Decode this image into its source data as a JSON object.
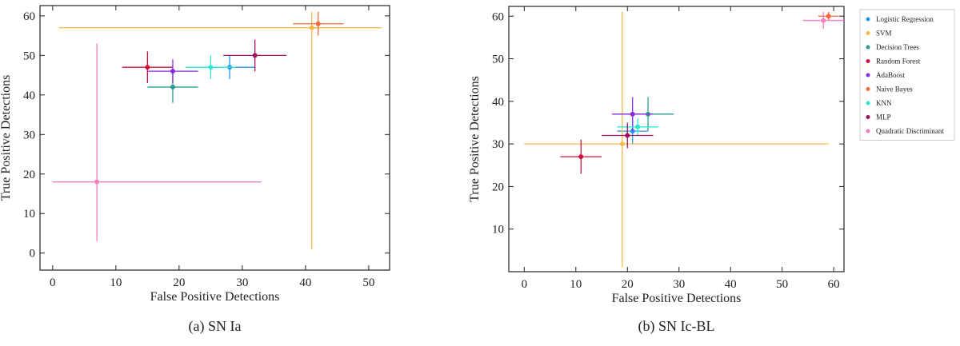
{
  "chart_data": [
    {
      "type": "scatter",
      "caption": "(a) SN Ia",
      "x_label": "False Positive Detections",
      "y_label": "True Positive Detections",
      "xlim": [
        -2,
        53.3
      ],
      "ylim": [
        -4.3,
        62.6
      ],
      "xticks": [
        0,
        10,
        20,
        30,
        40,
        50
      ],
      "yticks": [
        0,
        10,
        20,
        30,
        40,
        50,
        60
      ],
      "series": [
        {
          "color": "#2196f3",
          "x": [
            28
          ],
          "values": [
            47
          ],
          "x_err": [
            [
              4,
              4
            ]
          ],
          "y_err": [
            [
              3,
              3
            ]
          ]
        },
        {
          "color": "#f8b84a",
          "x": [
            41
          ],
          "values": [
            57
          ],
          "x_err": [
            [
              40,
              11
            ]
          ],
          "y_err": [
            [
              56,
              4
            ]
          ]
        },
        {
          "color": "#2a9d8f",
          "x": [
            19
          ],
          "values": [
            42
          ],
          "x_err": [
            [
              4,
              4
            ]
          ],
          "y_err": [
            [
              4,
              4
            ]
          ]
        },
        {
          "color": "#d0103a",
          "x": [
            15
          ],
          "values": [
            47
          ],
          "x_err": [
            [
              4,
              4
            ]
          ],
          "y_err": [
            [
              4,
              4
            ]
          ]
        },
        {
          "color": "#8a2be2",
          "x": [
            19
          ],
          "values": [
            46
          ],
          "x_err": [
            [
              4,
              4
            ]
          ],
          "y_err": [
            [
              3,
              3
            ]
          ]
        },
        {
          "color": "#f26b3a",
          "x": [
            42
          ],
          "values": [
            58
          ],
          "x_err": [
            [
              4,
              4
            ]
          ],
          "y_err": [
            [
              3,
              3
            ]
          ]
        },
        {
          "color": "#2ee8d0",
          "x": [
            25
          ],
          "values": [
            47
          ],
          "x_err": [
            [
              4,
              4
            ]
          ],
          "y_err": [
            [
              3,
              3
            ]
          ]
        },
        {
          "color": "#a01060",
          "x": [
            32
          ],
          "values": [
            50
          ],
          "x_err": [
            [
              5,
              5
            ]
          ],
          "y_err": [
            [
              4,
              4
            ]
          ]
        },
        {
          "color": "#f77fbf",
          "x": [
            7
          ],
          "values": [
            18
          ],
          "x_err": [
            [
              7,
              26
            ]
          ],
          "y_err": [
            [
              15,
              35
            ]
          ]
        }
      ]
    },
    {
      "type": "scatter",
      "caption": "(b) SN Ic-BL",
      "x_label": "False Positive Detections",
      "y_label": "True Positive Detections",
      "xlim": [
        -3,
        62
      ],
      "ylim": [
        0,
        62.3
      ],
      "xticks": [
        0,
        10,
        20,
        30,
        40,
        50,
        60
      ],
      "yticks": [
        10,
        20,
        30,
        40,
        50,
        60
      ],
      "legend": "outside upper right",
      "series": [
        {
          "name": "Logistic Regression",
          "color": "#2196f3",
          "x": [
            21
          ],
          "values": [
            33
          ],
          "x_err": [
            [
              3,
              3
            ]
          ],
          "y_err": [
            [
              3,
              3
            ]
          ]
        },
        {
          "name": "SVM",
          "color": "#f8b84a",
          "x": [
            19
          ],
          "values": [
            30
          ],
          "x_err": [
            [
              19,
              40
            ]
          ],
          "y_err": [
            [
              29,
              31
            ]
          ]
        },
        {
          "name": "Decision Trees",
          "color": "#2a9d8f",
          "x": [
            24
          ],
          "values": [
            37
          ],
          "x_err": [
            [
              5,
              5
            ]
          ],
          "y_err": [
            [
              4,
              4
            ]
          ]
        },
        {
          "name": "Random Forest",
          "color": "#d0103a",
          "x": [
            11
          ],
          "values": [
            27
          ],
          "x_err": [
            [
              4,
              4
            ]
          ],
          "y_err": [
            [
              4,
              4
            ]
          ]
        },
        {
          "name": "AdaBoost",
          "color": "#8a2be2",
          "x": [
            21
          ],
          "values": [
            37
          ],
          "x_err": [
            [
              4,
              4
            ]
          ],
          "y_err": [
            [
              4,
              4
            ]
          ]
        },
        {
          "name": "Naive Bayes",
          "color": "#f26b3a",
          "x": [
            59
          ],
          "values": [
            60
          ],
          "x_err": [
            [
              2,
              2
            ]
          ],
          "y_err": [
            [
              1,
              1
            ]
          ]
        },
        {
          "name": "KNN",
          "color": "#2ee8d0",
          "x": [
            22
          ],
          "values": [
            34
          ],
          "x_err": [
            [
              4,
              4
            ]
          ],
          "y_err": [
            [
              2,
              2
            ]
          ]
        },
        {
          "name": "MLP",
          "color": "#a01060",
          "x": [
            20
          ],
          "values": [
            32
          ],
          "x_err": [
            [
              5,
              5
            ]
          ],
          "y_err": [
            [
              3,
              3
            ]
          ]
        },
        {
          "name": "Quadratic Discriminant",
          "color": "#f77fbf",
          "x": [
            58
          ],
          "values": [
            59
          ],
          "x_err": [
            [
              4,
              4
            ]
          ],
          "y_err": [
            [
              2,
              2
            ]
          ]
        }
      ]
    }
  ]
}
